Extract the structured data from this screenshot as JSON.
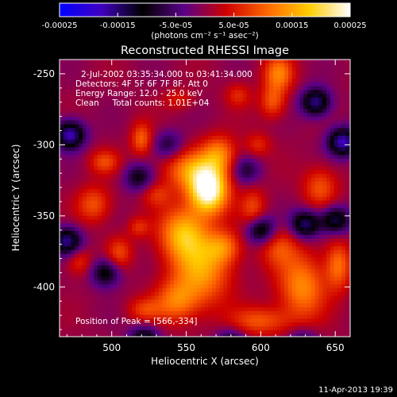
{
  "colorbar": {
    "ticks": [
      "-0.00025",
      "-0.00015",
      "-5.0e-05",
      "5.0e-05",
      "0.00015",
      "0.00025"
    ],
    "unit_label": "(photons cm⁻² s⁻¹ asec⁻²)",
    "range": [
      -0.00025,
      0.00025
    ],
    "stops": [
      "#0000ff",
      "#4000c0",
      "#000000",
      "#5a0088",
      "#cc0000",
      "#ff6600",
      "#ffcc00",
      "#ffffff"
    ]
  },
  "annotations": {
    "time": "2-Jul-2002 03:35:34.000 to 03:41:34.000",
    "detectors": "Detectors: 4F 5F 6F 7F 8F, Att 0",
    "energy": "Energy Range: 12.0 - 25.0 keV",
    "clean": "Clean     Total counts: 1.01E+04",
    "peak": "Position of Peak = [566,-334]"
  },
  "footer_date": "11-Apr-2013 19:39",
  "chart_data": {
    "type": "heatmap",
    "title": "Reconstructed RHESSI Image",
    "xlabel": "Heliocentric X (arcsec)",
    "ylabel": "Heliocentric Y (arcsec)",
    "xlim": [
      465,
      660
    ],
    "ylim": [
      -435,
      -240
    ],
    "x_ticks": [
      "500",
      "550",
      "600",
      "650"
    ],
    "x_tick_values": [
      500,
      550,
      600,
      650
    ],
    "y_ticks": [
      "-250",
      "-300",
      "-350",
      "-400"
    ],
    "y_tick_values": [
      -250,
      -300,
      -350,
      -400
    ],
    "peak": [
      566,
      -334
    ],
    "blobs": [
      {
        "x": 565,
        "y": -333,
        "sx": 9,
        "sy": 11,
        "v": 0.00025
      },
      {
        "x": 555,
        "y": -318,
        "sx": 14,
        "sy": 10,
        "v": 0.00013
      },
      {
        "x": 572,
        "y": -306,
        "sx": 8,
        "sy": 9,
        "v": 0.00011
      },
      {
        "x": 548,
        "y": -362,
        "sx": 11,
        "sy": 13,
        "v": 0.00015
      },
      {
        "x": 560,
        "y": -388,
        "sx": 14,
        "sy": 18,
        "v": 0.00014
      },
      {
        "x": 543,
        "y": -410,
        "sx": 10,
        "sy": 10,
        "v": 0.0001
      },
      {
        "x": 575,
        "y": -372,
        "sx": 8,
        "sy": 8,
        "v": 9e-05
      },
      {
        "x": 595,
        "y": -345,
        "sx": 6,
        "sy": 10,
        "v": 8e-05
      },
      {
        "x": 612,
        "y": -372,
        "sx": 9,
        "sy": 10,
        "v": 8e-05
      },
      {
        "x": 628,
        "y": -400,
        "sx": 11,
        "sy": 16,
        "v": 0.00013
      },
      {
        "x": 652,
        "y": -385,
        "sx": 6,
        "sy": 12,
        "v": 0.00011
      },
      {
        "x": 600,
        "y": -424,
        "sx": 14,
        "sy": 7,
        "v": 9e-05
      },
      {
        "x": 612,
        "y": -250,
        "sx": 7,
        "sy": 9,
        "v": 0.00012
      },
      {
        "x": 608,
        "y": -270,
        "sx": 6,
        "sy": 8,
        "v": 9e-05
      },
      {
        "x": 520,
        "y": -296,
        "sx": 5,
        "sy": 8,
        "v": 0.0001
      },
      {
        "x": 495,
        "y": -312,
        "sx": 7,
        "sy": 6,
        "v": 8e-05
      },
      {
        "x": 488,
        "y": -342,
        "sx": 8,
        "sy": 9,
        "v": 9e-05
      },
      {
        "x": 505,
        "y": -376,
        "sx": 6,
        "sy": 8,
        "v": 8e-05
      },
      {
        "x": 518,
        "y": -358,
        "sx": 5,
        "sy": 5,
        "v": 6e-05
      },
      {
        "x": 530,
        "y": -335,
        "sx": 7,
        "sy": 6,
        "v": 6e-05
      },
      {
        "x": 522,
        "y": -416,
        "sx": 8,
        "sy": 6,
        "v": 7e-05
      },
      {
        "x": 640,
        "y": -330,
        "sx": 8,
        "sy": 10,
        "v": 9e-05
      },
      {
        "x": 598,
        "y": -300,
        "sx": 6,
        "sy": 6,
        "v": 6e-05
      },
      {
        "x": 478,
        "y": -382,
        "sx": 6,
        "sy": 7,
        "v": 7e-05
      },
      {
        "x": 585,
        "y": -265,
        "sx": 6,
        "sy": 6,
        "v": 6e-05
      },
      {
        "x": 545,
        "y": -268,
        "sx": 7,
        "sy": 5,
        "v": 5e-05
      }
    ],
    "minima": [
      {
        "x": 472,
        "y": -293,
        "v": -0.00018
      },
      {
        "x": 470,
        "y": -368,
        "v": -0.00016
      },
      {
        "x": 655,
        "y": -298,
        "v": -0.00018
      },
      {
        "x": 637,
        "y": -270,
        "v": -0.00016
      },
      {
        "x": 630,
        "y": -356,
        "v": -0.00015
      },
      {
        "x": 600,
        "y": -360,
        "v": -0.00014
      },
      {
        "x": 522,
        "y": -438,
        "v": -0.00014
      },
      {
        "x": 496,
        "y": -390,
        "v": -0.00012
      },
      {
        "x": 518,
        "y": -323,
        "v": -0.0001
      },
      {
        "x": 580,
        "y": -440,
        "v": -0.00012
      },
      {
        "x": 650,
        "y": -353,
        "v": -0.00014
      },
      {
        "x": 538,
        "y": -300,
        "v": -8e-05
      },
      {
        "x": 590,
        "y": -318,
        "v": -8e-05
      },
      {
        "x": 628,
        "y": -440,
        "v": -0.0001
      }
    ]
  }
}
